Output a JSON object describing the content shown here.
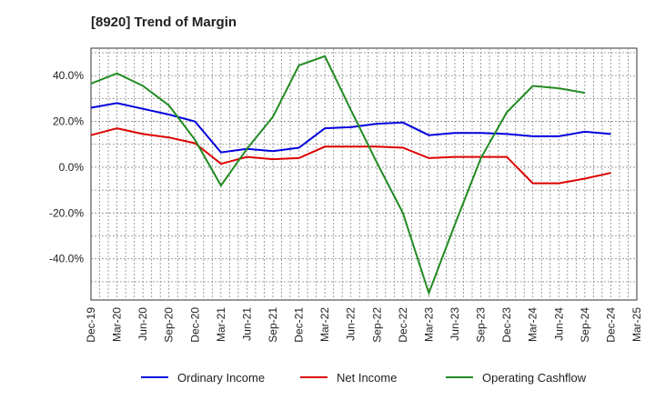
{
  "title": "[8920]  Trend of Margin",
  "chart_data": {
    "type": "line",
    "title": "[8920]  Trend of Margin",
    "x": [
      "Dec-19",
      "Mar-20",
      "Jun-20",
      "Sep-20",
      "Dec-20",
      "Mar-21",
      "Jun-21",
      "Sep-21",
      "Dec-21",
      "Mar-22",
      "Jun-22",
      "Sep-22",
      "Dec-22",
      "Mar-23",
      "Jun-23",
      "Sep-23",
      "Dec-23",
      "Mar-24",
      "Jun-24",
      "Sep-24",
      "Dec-24",
      "Mar-25"
    ],
    "yticks": [
      "40.0%",
      "20.0%",
      "0.0%",
      "-20.0%",
      "-40.0%"
    ],
    "ytick_values": [
      40,
      20,
      0,
      -20,
      -40
    ],
    "ylim": [
      -58,
      52
    ],
    "grid": true,
    "legend_position": "bottom",
    "series": [
      {
        "name": "Ordinary Income",
        "color": "#0000dd",
        "values": [
          26.0,
          28.0,
          25.5,
          23.0,
          20.0,
          6.5,
          8.0,
          7.0,
          8.5,
          17.0,
          17.5,
          19.0,
          19.5,
          14.0,
          15.0,
          15.0,
          14.5,
          13.5,
          13.5,
          15.5,
          14.5,
          null
        ]
      },
      {
        "name": "Net Income",
        "color": "#dd0000",
        "values": [
          14.0,
          17.0,
          14.5,
          13.0,
          10.5,
          1.5,
          4.5,
          3.5,
          4.0,
          9.0,
          9.0,
          9.0,
          8.5,
          4.0,
          4.5,
          4.5,
          4.5,
          -7.0,
          -7.0,
          -5.0,
          -2.5,
          null
        ]
      },
      {
        "name": "Operating Cashflow",
        "color": "#228b22",
        "values": [
          36.5,
          41.0,
          35.5,
          27.0,
          12.0,
          -8.0,
          8.0,
          22.0,
          44.5,
          48.5,
          25.0,
          2.0,
          -20.0,
          -55.0,
          -25.0,
          4.0,
          24.0,
          35.5,
          34.5,
          32.5,
          null,
          null
        ]
      }
    ]
  }
}
